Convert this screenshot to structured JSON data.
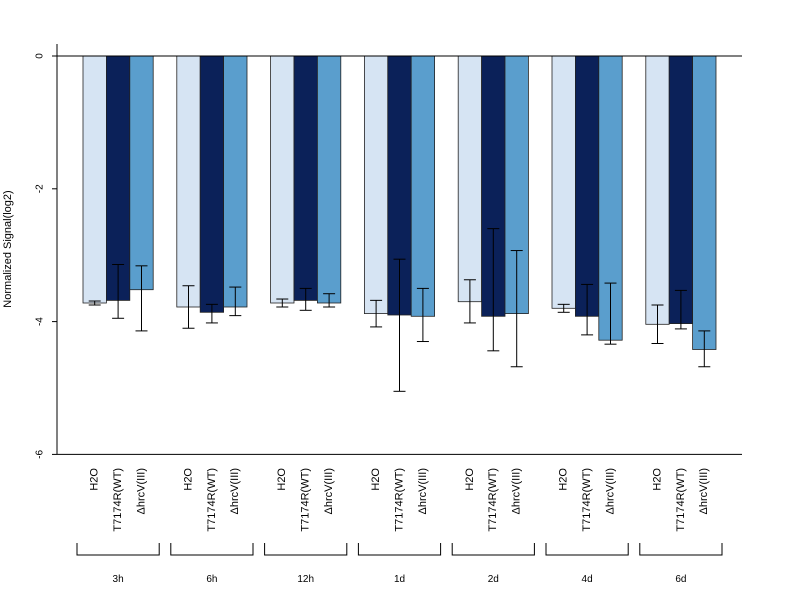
{
  "chart_data": {
    "type": "bar",
    "ylabel": "Normalized Signal(log2)",
    "ylim": [
      -6,
      0
    ],
    "yticks": [
      0,
      -2,
      -4,
      -6
    ],
    "yticklabels": [
      "0",
      "-2",
      "-4",
      "-6"
    ],
    "groups": [
      "3h",
      "6h",
      "12h",
      "1d",
      "2d",
      "4d",
      "6d"
    ],
    "categories": [
      "H2O",
      "T7174R(WT)",
      "ΔhrcV(III)"
    ],
    "series_colors": [
      "#d6e4f3",
      "#0b2159",
      "#5a9ecd"
    ],
    "values": [
      [
        -3.72,
        -3.68,
        -3.52
      ],
      [
        -3.78,
        -3.86,
        -3.78
      ],
      [
        -3.72,
        -3.68,
        -3.72
      ],
      [
        -3.88,
        -3.9,
        -3.92
      ],
      [
        -3.7,
        -3.92,
        -3.88
      ],
      [
        -3.8,
        -3.92,
        -4.28
      ],
      [
        -4.04,
        -4.03,
        -4.42
      ]
    ],
    "error_bars": [
      [
        [
          -3.75,
          -3.69
        ],
        [
          -3.95,
          -3.14
        ],
        [
          -4.14,
          -3.16
        ]
      ],
      [
        [
          -4.1,
          -3.46
        ],
        [
          -4.02,
          -3.74
        ],
        [
          -3.91,
          -3.48
        ]
      ],
      [
        [
          -3.78,
          -3.66
        ],
        [
          -3.83,
          -3.5
        ],
        [
          -3.78,
          -3.58
        ]
      ],
      [
        [
          -4.08,
          -3.68
        ],
        [
          -5.05,
          -3.06
        ],
        [
          -4.3,
          -3.5
        ]
      ],
      [
        [
          -4.02,
          -3.37
        ],
        [
          -4.44,
          -2.6
        ],
        [
          -4.68,
          -2.93
        ]
      ],
      [
        [
          -3.86,
          -3.74
        ],
        [
          -4.2,
          -3.44
        ],
        [
          -4.34,
          -3.42
        ]
      ],
      [
        [
          -4.33,
          -3.75
        ],
        [
          -4.11,
          -3.53
        ],
        [
          -4.68,
          -4.14
        ]
      ]
    ]
  }
}
